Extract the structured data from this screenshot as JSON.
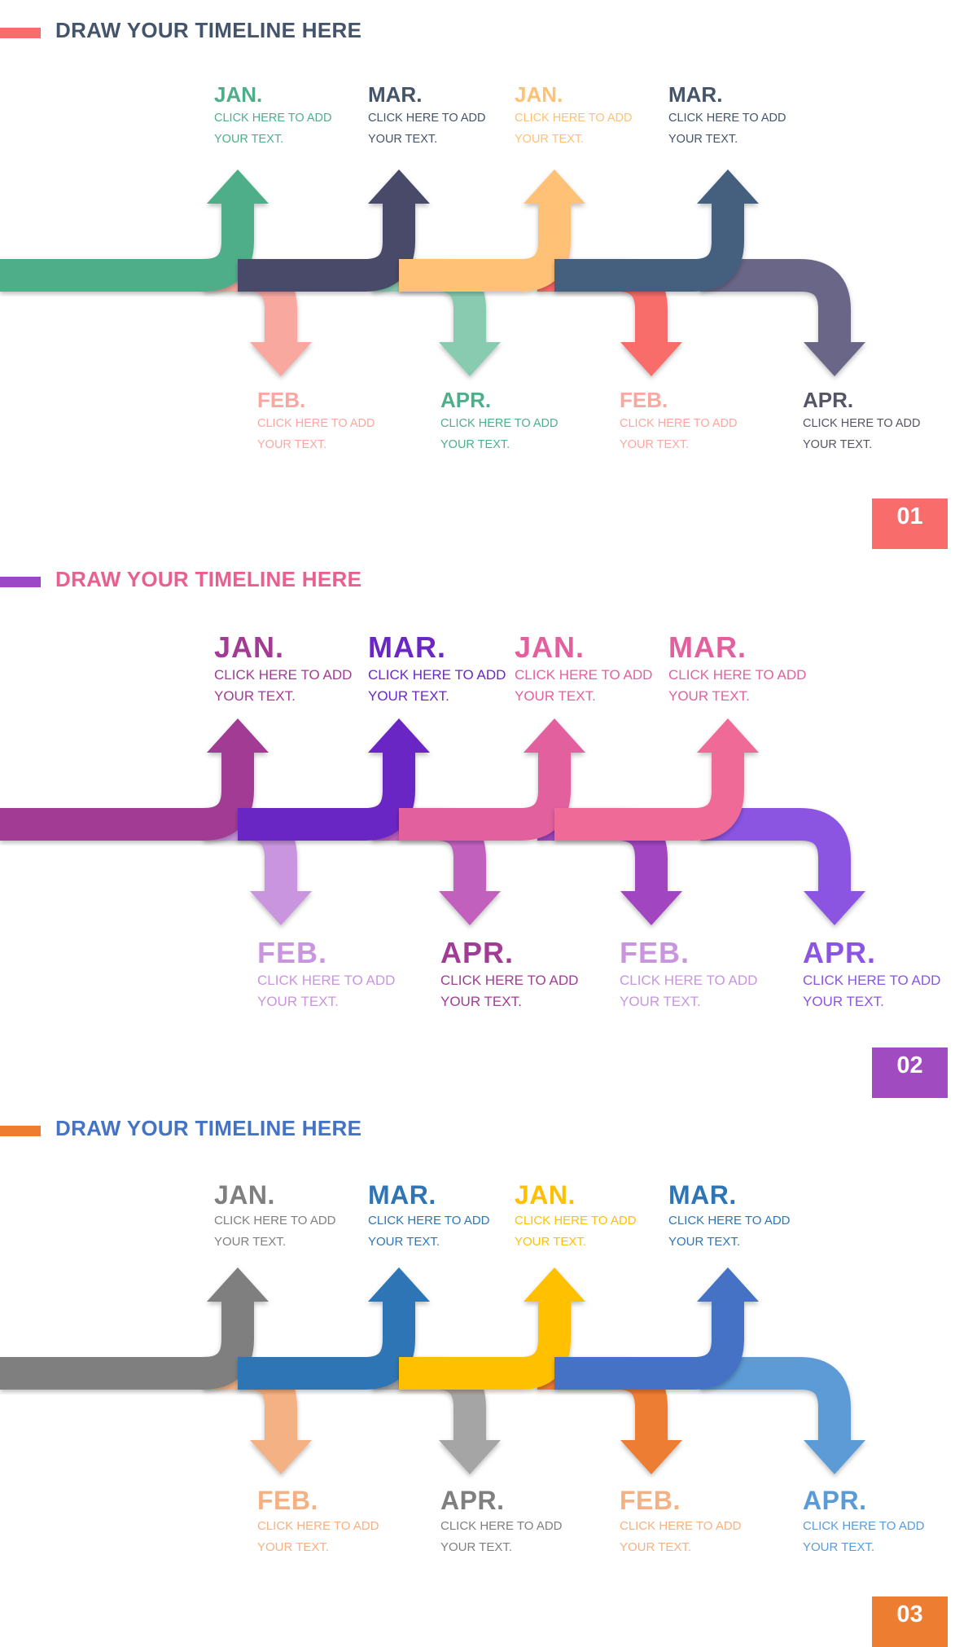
{
  "sections": [
    {
      "title": "DRAW YOUR TIMELINE HERE",
      "title_color": "#44546A",
      "accent_color": "#F86C6B",
      "badge": "01",
      "badge_color": "#F86C6B",
      "colors": [
        "#4FAE8A",
        "#F9A8A0",
        "#4A4A6A",
        "#88CBB0",
        "#FFC174",
        "#F86C6B",
        "#44607E",
        "#6B6688"
      ],
      "labels": [
        {
          "month": "JAN.",
          "text1": "CLICK HERE TO ADD",
          "text2": "YOUR TEXT.",
          "color": "#4FAE8A"
        },
        {
          "month": "FEB.",
          "text1": "CLICK HERE TO ADD",
          "text2": "YOUR TEXT.",
          "color": "#F9A8A0"
        },
        {
          "month": "MAR.",
          "text1": "CLICK HERE TO ADD",
          "text2": "YOUR TEXT.",
          "color": "#44546A"
        },
        {
          "month": "APR.",
          "text1": "CLICK HERE TO ADD",
          "text2": "YOUR TEXT.",
          "color": "#4FAE8A"
        },
        {
          "month": "JAN.",
          "text1": "CLICK HERE TO ADD",
          "text2": "YOUR TEXT.",
          "color": "#FFC174"
        },
        {
          "month": "FEB.",
          "text1": "CLICK HERE TO ADD",
          "text2": "YOUR TEXT.",
          "color": "#F9A8A0"
        },
        {
          "month": "MAR.",
          "text1": "CLICK HERE TO ADD",
          "text2": "YOUR TEXT.",
          "color": "#44546A"
        },
        {
          "month": "APR.",
          "text1": "CLICK HERE TO ADD",
          "text2": "YOUR TEXT.",
          "color": "#555566"
        }
      ]
    },
    {
      "title": "DRAW YOUR TIMELINE HERE",
      "title_color": "#E9608F",
      "accent_color": "#9E47C6",
      "badge": "02",
      "badge_color": "#A14BC0",
      "colors": [
        "#A23B94",
        "#C895DE",
        "#6B27C4",
        "#C261BE",
        "#E2609E",
        "#A144C0",
        "#F06A98",
        "#8B55E2"
      ],
      "labels": [
        {
          "month": "JAN.",
          "text1": "CLICK HERE TO ADD",
          "text2": "YOUR TEXT.",
          "color": "#A23B94"
        },
        {
          "month": "FEB.",
          "text1": "CLICK HERE TO ADD",
          "text2": "YOUR TEXT.",
          "color": "#C895DE"
        },
        {
          "month": "MAR.",
          "text1": "CLICK HERE TO ADD",
          "text2": "YOUR TEXT.",
          "color": "#6B27C4"
        },
        {
          "month": "APR.",
          "text1": "CLICK HERE TO ADD",
          "text2": "YOUR TEXT.",
          "color": "#A23B94"
        },
        {
          "month": "JAN.",
          "text1": "CLICK HERE TO ADD",
          "text2": "YOUR TEXT.",
          "color": "#E2609E"
        },
        {
          "month": "FEB.",
          "text1": "CLICK HERE TO ADD",
          "text2": "YOUR TEXT.",
          "color": "#C895DE"
        },
        {
          "month": "MAR.",
          "text1": "CLICK HERE TO ADD",
          "text2": "YOUR TEXT.",
          "color": "#E2609E"
        },
        {
          "month": "APR.",
          "text1": "CLICK HERE TO ADD",
          "text2": "YOUR TEXT.",
          "color": "#8B55E2"
        }
      ]
    },
    {
      "title": "DRAW YOUR TIMELINE HERE",
      "title_color": "#4472C4",
      "accent_color": "#ED7D31",
      "badge": "03",
      "badge_color": "#ED7D31",
      "colors": [
        "#7F7F7F",
        "#F4B183",
        "#2E75B6",
        "#A5A5A5",
        "#FFC000",
        "#ED7D31",
        "#4472C4",
        "#5B9BD5"
      ],
      "labels": [
        {
          "month": "JAN.",
          "text1": "CLICK HERE TO ADD",
          "text2": "YOUR TEXT.",
          "color": "#7F7F7F"
        },
        {
          "month": "FEB.",
          "text1": "CLICK HERE TO ADD",
          "text2": "YOUR TEXT.",
          "color": "#F4B183"
        },
        {
          "month": "MAR.",
          "text1": "CLICK HERE TO ADD",
          "text2": "YOUR TEXT.",
          "color": "#2E75B6"
        },
        {
          "month": "APR.",
          "text1": "CLICK HERE TO ADD",
          "text2": "YOUR TEXT.",
          "color": "#7F7F7F"
        },
        {
          "month": "JAN.",
          "text1": "CLICK HERE TO ADD",
          "text2": "YOUR TEXT.",
          "color": "#FFC000"
        },
        {
          "month": "FEB.",
          "text1": "CLICK HERE TO ADD",
          "text2": "YOUR TEXT.",
          "color": "#F4B183"
        },
        {
          "month": "MAR.",
          "text1": "CLICK HERE TO ADD",
          "text2": "YOUR TEXT.",
          "color": "#2E75B6"
        },
        {
          "month": "APR.",
          "text1": "CLICK HERE TO ADD",
          "text2": "YOUR TEXT.",
          "color": "#5B9BD5"
        }
      ]
    }
  ]
}
